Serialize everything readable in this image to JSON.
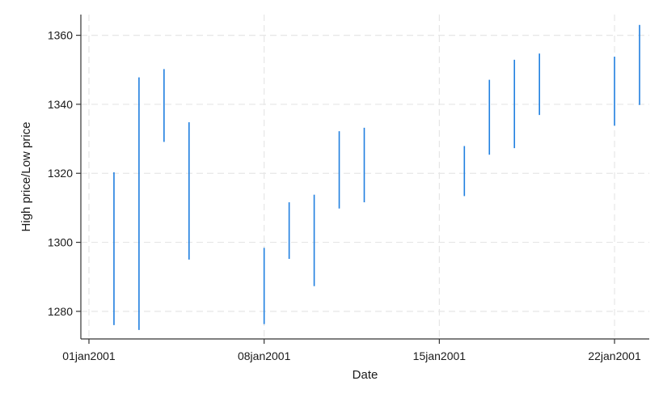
{
  "chart_data": {
    "type": "range-spike",
    "xlabel": "Date",
    "ylabel": "High price/Low price",
    "xlim": [
      "2000-12-31",
      "2001-01-23"
    ],
    "ylim": [
      1272,
      1366
    ],
    "grid": true,
    "legend": "none",
    "x_ticks": [
      {
        "date": "2001-01-01",
        "label": "01jan2001"
      },
      {
        "date": "2001-01-08",
        "label": "08jan2001"
      },
      {
        "date": "2001-01-15",
        "label": "15jan2001"
      },
      {
        "date": "2001-01-22",
        "label": "22jan2001"
      }
    ],
    "y_ticks": [
      1280,
      1300,
      1320,
      1340,
      1360
    ],
    "series": [
      {
        "color": "#1f7fe0",
        "points": [
          {
            "date": "2001-01-02",
            "low": 1276.0,
            "high": 1320.3
          },
          {
            "date": "2001-01-03",
            "low": 1274.6,
            "high": 1347.8
          },
          {
            "date": "2001-01-04",
            "low": 1329.1,
            "high": 1350.2
          },
          {
            "date": "2001-01-05",
            "low": 1295.0,
            "high": 1334.8
          },
          {
            "date": "2001-01-08",
            "low": 1276.3,
            "high": 1298.4
          },
          {
            "date": "2001-01-09",
            "low": 1295.2,
            "high": 1311.6
          },
          {
            "date": "2001-01-10",
            "low": 1287.3,
            "high": 1313.8
          },
          {
            "date": "2001-01-11",
            "low": 1309.8,
            "high": 1332.2
          },
          {
            "date": "2001-01-12",
            "low": 1311.6,
            "high": 1333.2
          },
          {
            "date": "2001-01-16",
            "low": 1313.4,
            "high": 1327.9
          },
          {
            "date": "2001-01-17",
            "low": 1325.4,
            "high": 1347.1
          },
          {
            "date": "2001-01-18",
            "low": 1327.3,
            "high": 1352.9
          },
          {
            "date": "2001-01-19",
            "low": 1336.9,
            "high": 1354.7
          },
          {
            "date": "2001-01-22",
            "low": 1333.8,
            "high": 1353.8
          },
          {
            "date": "2001-01-23",
            "low": 1339.8,
            "high": 1363.0
          }
        ]
      }
    ]
  }
}
